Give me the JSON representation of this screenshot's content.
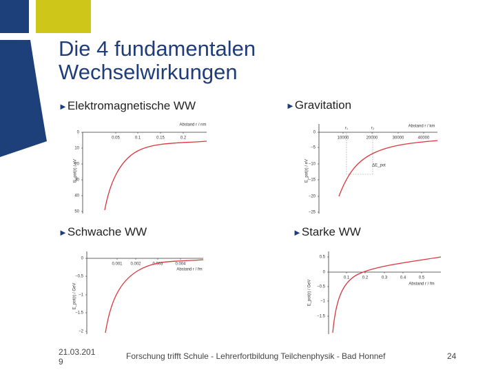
{
  "title_lines": [
    "Die 4 fundamentalen",
    "Wechselwirkungen"
  ],
  "plots": [
    {
      "heading": "Elektromagnetische WW",
      "x_label": "Abstand r / nm",
      "y_label": "E_pot(r) / eV",
      "x_ticks": [
        "0.05",
        "0.1",
        "0.15",
        "0.2"
      ],
      "y_ticks": [
        "0",
        "10",
        "20",
        "30",
        "40",
        "50"
      ],
      "annotations": []
    },
    {
      "heading": "Gravitation",
      "x_label": "Abstand r / km",
      "y_label": "E_pot(r) / eV",
      "x_ticks": [
        "10000",
        "20000",
        "30000",
        "40000"
      ],
      "y_ticks": [
        "0",
        "−5",
        "−10",
        "−15",
        "−20",
        "−25"
      ],
      "annotations": [
        "r₁",
        "r₂",
        "ΔE_pot"
      ]
    },
    {
      "heading": "Schwache WW",
      "x_label": "Abstand r / fm",
      "y_label": "E_pot(r) / GeV",
      "x_ticks": [
        "0.001",
        "0.002",
        "0.003",
        "0.004"
      ],
      "y_ticks": [
        "0",
        "−0.5",
        "−1",
        "−1.5",
        "−2"
      ],
      "annotations": []
    },
    {
      "heading": "Starke WW",
      "x_label": "Abstand r / fm",
      "y_label": "E_pot(r) / GeV",
      "x_ticks": [
        "0.1",
        "0.2",
        "0.3",
        "0.4",
        "0.5"
      ],
      "y_ticks": [
        "0.5",
        "0",
        "−0.5",
        "−1",
        "−1.5"
      ],
      "annotations": []
    }
  ],
  "footer": {
    "date": "21.03.2019",
    "text": "Forschung trifft Schule - Lehrerfortbildung Teilchenphysik - Bad Honnef",
    "page": "24"
  }
}
